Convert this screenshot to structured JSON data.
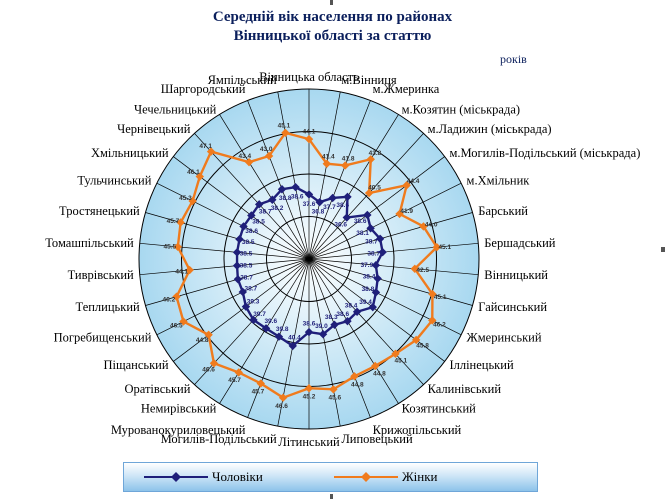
{
  "title_line1": "Середній вік населення по районах",
  "title_line2": "Вінницької області за статтю",
  "unit": "років",
  "colors": {
    "men": "#1f1f7a",
    "women": "#f07b1d",
    "grid_inner": "#ffffff",
    "grid_outer": "#a8d8f0"
  },
  "chart_data": {
    "type": "radar",
    "title": "Середній вік населення по районах Вінницької області за статтю",
    "unit": "років",
    "categories": [
      "Вінницька область",
      "м.Вінниця",
      "м.Жмеринка",
      "м.Козятин (міськрада)",
      "м.Ладижин (міськрада)",
      "м.Могилів-Подільський (міськрада)",
      "м.Хмільник",
      "Барський",
      "Бершадський",
      "Вінницький",
      "Гайсинський",
      "Жмеринський",
      "Іллінецький",
      "Калинівський",
      "Козятинський",
      "Крижопільський",
      "Липовецький",
      "Літинський",
      "Могилів-Подільський",
      "Мурованокуриловецький",
      "Немирівський",
      "Оратівський",
      "Піщанський",
      "Погребищенський",
      "Теплицький",
      "Тиврівський",
      "Томашпільський",
      "Тростянецький",
      "Тульчинський",
      "Хмільницький",
      "Чернівецький",
      "Чечельницький",
      "Шаргородський",
      "Ямпільський"
    ],
    "series": [
      {
        "name": "Чоловіки",
        "values": [
          37.6,
          36.8,
          37.7,
          38.6,
          36.6,
          38.6,
          38.1,
          38.7,
          38.7,
          37.9,
          38.4,
          38.8,
          39.4,
          38.4,
          38.6,
          38.3,
          39.0,
          38.6,
          40.4,
          39.8,
          39.6,
          39.7,
          39.3,
          38.7,
          38.7,
          38.5,
          38.5,
          38.5,
          38.6,
          38.5,
          38.7,
          38.2,
          38.8,
          38.6
        ]
      },
      {
        "name": "Жінки",
        "values": [
          44.1,
          41.4,
          41.8,
          43.8,
          40.5,
          44.4,
          41.9,
          44.0,
          45.1,
          42.5,
          45.1,
          46.2,
          45.8,
          45.1,
          44.8,
          44.8,
          45.6,
          45.2,
          46.6,
          45.7,
          45.7,
          46.6,
          44.8,
          46.5,
          46.2,
          44.1,
          45.5,
          45.7,
          45.3,
          46.1,
          47.1,
          43.4,
          43.0,
          45.1
        ]
      }
    ],
    "rlim": [
      30,
      50
    ],
    "legend_position": "bottom",
    "grid": true
  }
}
